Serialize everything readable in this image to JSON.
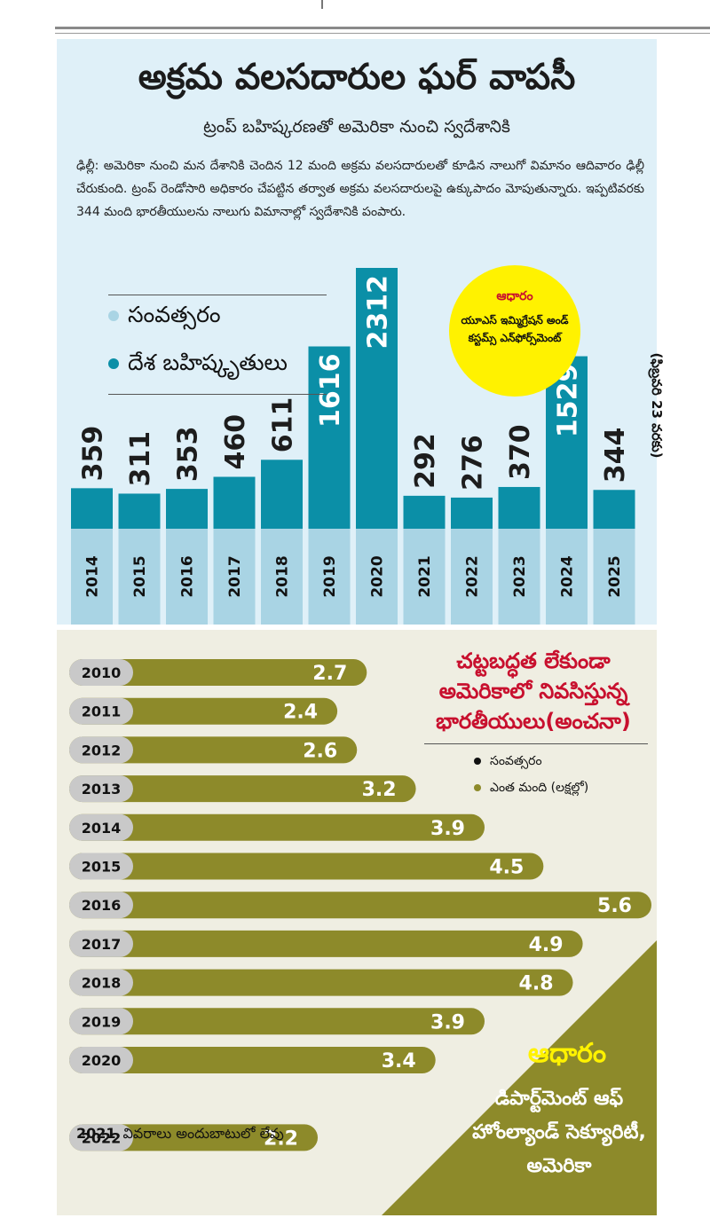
{
  "upper": {
    "title": "అక్రమ వలసదారుల ఘర్ వాపసీ",
    "subtitle": "ట్రంప్ బహిష్కరణతో అమెరికా నుంచి స్వదేశానికి",
    "body": "ఢిల్లీ: అమెరికా నుంచి మన దేశానికి చెందిన 12 మంది అక్రమ వలసదారులతో కూడిన నాలుగో విమానం ఆదివారం ఢిల్లీ చేరుకుంది. ట్రంప్ రెండోసారి అధికారం చేపట్టిన తర్వాత అక్రమ వలసదారులపై ఉక్కుపాదం మోపుతున్నారు. ఇప్పటివరకు 344 మంది భారతీయులను నాలుగు విమానాల్లో స్వదేశానికి పంపారు.",
    "legend": [
      {
        "label": "సంవత్సరం",
        "color": "#a9d4e4"
      },
      {
        "label": "దేశ బహిష్కృతులు",
        "color": "#0b8fa7"
      }
    ],
    "source_head": "ఆధారం",
    "source_body": "యూఎస్ ఇమ్మిగ్రేషన్ అండ్ కస్టమ్స్ ఎన్‌ఫోర్స్‌మెంట్",
    "note": "(ఫిబ్రవరి 23 వరకు)"
  },
  "lower": {
    "title": "చట్టబద్ధత లేకుండా అమెరికాలో నివసిస్తున్న భారతీయులు(అంచనా)",
    "legend": [
      {
        "label": "సంవత్సరం",
        "color": "#111111"
      },
      {
        "label": "ఎంత మంది (లక్షల్లో)",
        "color": "#8d8a2a"
      }
    ],
    "no_data_year": "2021",
    "no_data_text": "వివరాలు అందుబాటులో లేవు",
    "source_head": "ఆధారం",
    "source_body": "డిపార్ట్‌మెంట్ ఆఫ్ హోంల్యాండ్ సెక్యూరిటీ, అమెరికా"
  },
  "colors": {
    "bar1": "#0b8fa7",
    "year_band": "#a9d4e4",
    "bar2": "#8d8a2a",
    "year_pill": "#c9c9c9",
    "badge": "#fff200",
    "accent_red": "#c8102e"
  },
  "chart_data": [
    {
      "type": "bar",
      "categories": [
        "2014",
        "2015",
        "2016",
        "2017",
        "2018",
        "2019",
        "2020",
        "2021",
        "2022",
        "2023",
        "2024",
        "2025"
      ],
      "series": [
        {
          "name": "దేశ బహిష్కృతులు",
          "values": [
            359,
            311,
            353,
            460,
            611,
            1616,
            2312,
            292,
            276,
            370,
            1529,
            344
          ]
        }
      ]
    },
    {
      "type": "bar",
      "orientation": "horizontal",
      "categories": [
        "2010",
        "2011",
        "2012",
        "2013",
        "2014",
        "2015",
        "2016",
        "2017",
        "2018",
        "2019",
        "2020",
        "2021",
        "2022"
      ],
      "series": [
        {
          "name": "ఎంత మంది (లక్షల్లో)",
          "values": [
            2.7,
            2.4,
            2.6,
            3.2,
            3.9,
            4.5,
            5.6,
            4.9,
            4.8,
            3.9,
            3.4,
            null,
            2.2
          ]
        }
      ]
    }
  ]
}
